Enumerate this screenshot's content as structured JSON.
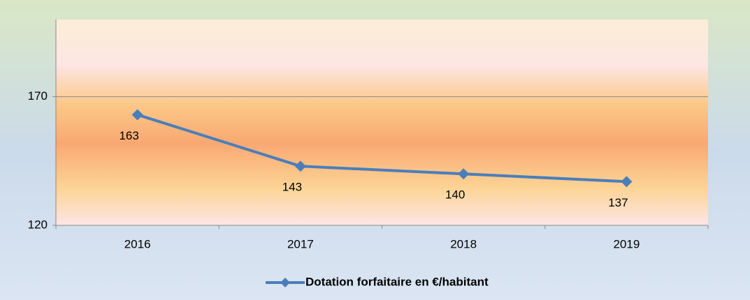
{
  "chart_data": {
    "type": "line",
    "categories": [
      "2016",
      "2017",
      "2018",
      "2019"
    ],
    "series": [
      {
        "name": "Dotation forfaitaire en €/habitant",
        "color": "#4a7ebb",
        "values": [
          163,
          143,
          140,
          137
        ]
      }
    ],
    "ylim": [
      120,
      200
    ],
    "yticks": [
      120,
      170
    ],
    "grid": true,
    "legend": "bottom",
    "data_labels": true
  }
}
